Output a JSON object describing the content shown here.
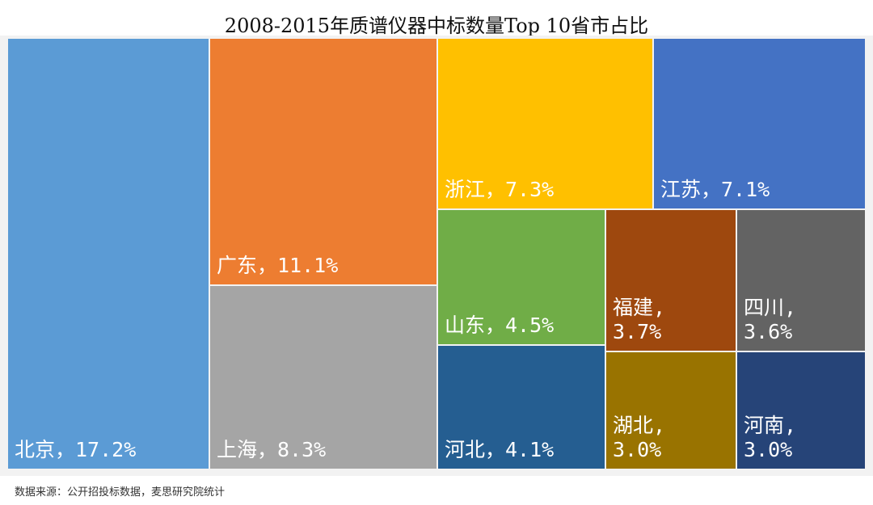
{
  "chart_data": {
    "type": "treemap",
    "title": "2008-2015年质谱仪器中标数量Top 10省市占比",
    "separator": "，",
    "unit": "%",
    "items": [
      {
        "name": "北京",
        "value": 17.2,
        "color": "#5b9bd5"
      },
      {
        "name": "广东",
        "value": 11.1,
        "color": "#ed7d31"
      },
      {
        "name": "上海",
        "value": 8.3,
        "color": "#a5a5a5"
      },
      {
        "name": "浙江",
        "value": 7.3,
        "color": "#ffc000"
      },
      {
        "name": "江苏",
        "value": 7.1,
        "color": "#4472c4"
      },
      {
        "name": "山东",
        "value": 4.5,
        "color": "#70ad47"
      },
      {
        "name": "河北",
        "value": 4.1,
        "color": "#255e91"
      },
      {
        "name": "福建",
        "value": 3.7,
        "color": "#9e480e"
      },
      {
        "name": "四川",
        "value": 3.6,
        "color": "#636363"
      },
      {
        "name": "湖北",
        "value": 3.0,
        "color": "#997300"
      },
      {
        "name": "河南",
        "value": 3.0,
        "color": "#264478"
      }
    ]
  },
  "source": "数据来源：公开招投标数据，麦思研究院统计"
}
